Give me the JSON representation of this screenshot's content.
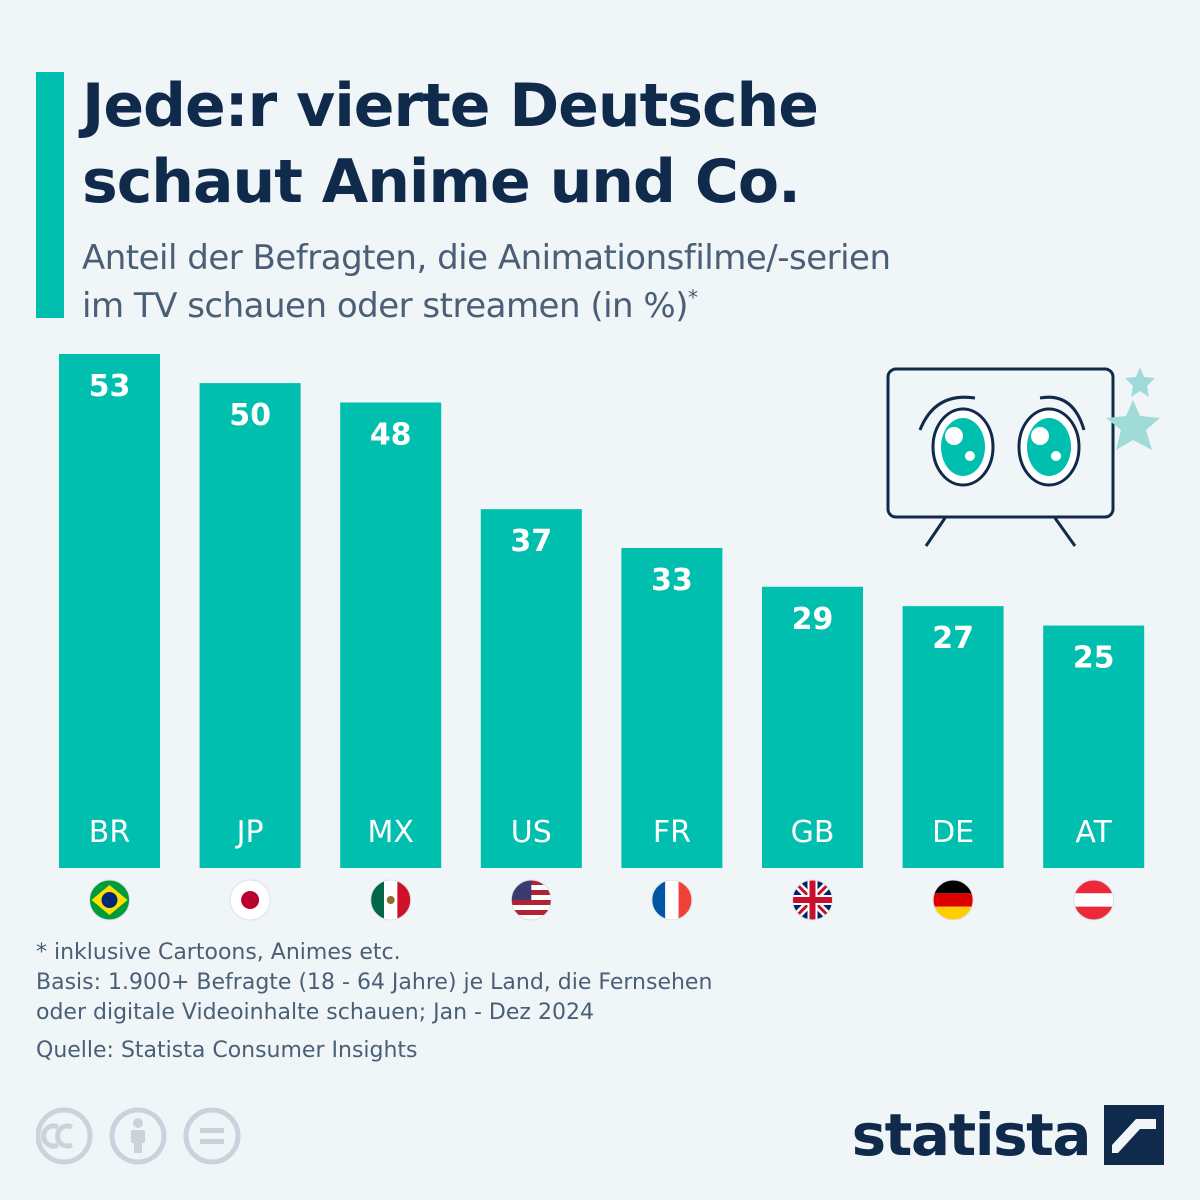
{
  "header": {
    "title": "Jede:r vierte Deutsche\nschaut Anime und Co.",
    "subtitle_line1": "Anteil der Befragten, die Animationsfilme/-serien",
    "subtitle_line2": "im TV schauen oder streamen (in %)",
    "subtitle_mark": "*"
  },
  "chart_data": {
    "type": "bar",
    "categories": [
      "BR",
      "JP",
      "MX",
      "US",
      "FR",
      "GB",
      "DE",
      "AT"
    ],
    "values": [
      53,
      50,
      48,
      37,
      33,
      29,
      27,
      25
    ],
    "ylim": [
      0,
      53
    ],
    "grid": false,
    "bar_color": "#00bfae",
    "flags": [
      "brazil-flag",
      "japan-flag",
      "mexico-flag",
      "usa-flag",
      "france-flag",
      "uk-flag",
      "germany-flag",
      "austria-flag"
    ]
  },
  "footer": {
    "note1": "* inklusive Cartoons, Animes etc.",
    "note2": "Basis: 1.900+ Befragte (18 - 64 Jahre) je Land, die Fernsehen",
    "note3": "oder digitale Videoinhalte schauen; Jan - Dez 2024",
    "source": "Quelle: Statista Consumer Insights",
    "license_icons": [
      "cc-icon",
      "attribution-icon",
      "no-derivatives-icon"
    ]
  },
  "logo": {
    "text": "statista"
  },
  "colors": {
    "accent": "#00bfae",
    "navy": "#0f2a4a",
    "text_muted": "#4a5f76",
    "background": "#f0f5f8"
  }
}
